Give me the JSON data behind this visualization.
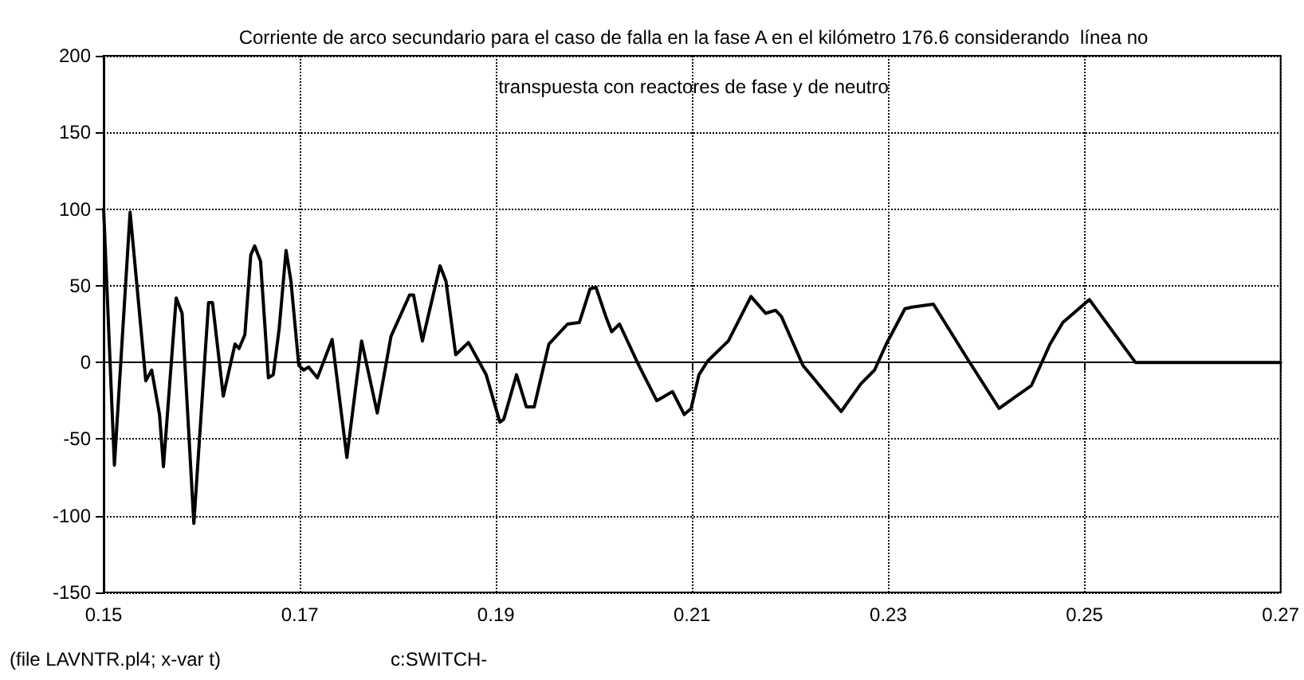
{
  "chart_data": {
    "type": "line",
    "title": "Corriente de arco secundario para el caso de falla en la fase A en el kilómetro 176.6 considerando  línea no\ntranspuesta con reactores de fase y de neutro",
    "annotations": [
      "(file LAVNTR.pl4; x-var t)",
      "c:SWITCH-"
    ],
    "xlim": [
      0.15,
      0.27
    ],
    "xticks": [
      0.15,
      0.17,
      0.19,
      0.21,
      0.23,
      0.25,
      0.27
    ],
    "ylim": [
      -150,
      200
    ],
    "yticks": [
      -150,
      -100,
      -50,
      0,
      50,
      100,
      150,
      200
    ],
    "grid": true,
    "marker": "none",
    "line_style": "solid",
    "series": [
      {
        "color": "#000000",
        "x": [
          0.15,
          0.1511,
          0.1527,
          0.1543,
          0.1549,
          0.1557,
          0.1561,
          0.1574,
          0.158,
          0.1592,
          0.1607,
          0.1611,
          0.1622,
          0.1634,
          0.1638,
          0.1644,
          0.165,
          0.1654,
          0.166,
          0.1668,
          0.1673,
          0.1679,
          0.1686,
          0.1691,
          0.1699,
          0.1704,
          0.1709,
          0.1718,
          0.1733,
          0.1748,
          0.1763,
          0.1779,
          0.1793,
          0.1812,
          0.1816,
          0.1825,
          0.1843,
          0.1849,
          0.1859,
          0.1872,
          0.189,
          0.1904,
          0.1908,
          0.1921,
          0.1931,
          0.1939,
          0.1954,
          0.1973,
          0.1985,
          0.1996,
          0.2002,
          0.2012,
          0.2018,
          0.2026,
          0.2045,
          0.2064,
          0.208,
          0.2092,
          0.2099,
          0.2107,
          0.2116,
          0.2137,
          0.216,
          0.2175,
          0.2185,
          0.2191,
          0.2213,
          0.2235,
          0.2252,
          0.2272,
          0.2286,
          0.2298,
          0.2317,
          0.2324,
          0.2346,
          0.2381,
          0.2413,
          0.2446,
          0.2465,
          0.2478,
          0.2505,
          0.2552,
          0.27
        ],
        "values": [
          100,
          -67,
          98,
          -12,
          -5,
          -34,
          -68,
          42,
          32,
          -105,
          39,
          39,
          -22,
          12,
          9,
          18,
          70,
          76,
          66,
          -10,
          -8,
          22,
          73,
          53,
          -2,
          -5,
          -3,
          -10,
          15,
          -62,
          14,
          -33,
          17,
          44,
          44,
          14,
          63,
          53,
          5,
          13,
          -8,
          -39,
          -37,
          -8,
          -29,
          -29,
          12,
          25,
          26,
          48,
          49,
          30,
          20,
          25,
          -1,
          -25,
          -19,
          -34,
          -30,
          -8,
          1,
          14,
          43,
          32,
          34,
          30,
          -2,
          -19,
          -32,
          -14,
          -5,
          12,
          35,
          36,
          38,
          2,
          -30,
          -15,
          12,
          26,
          41,
          0,
          0
        ]
      }
    ]
  }
}
